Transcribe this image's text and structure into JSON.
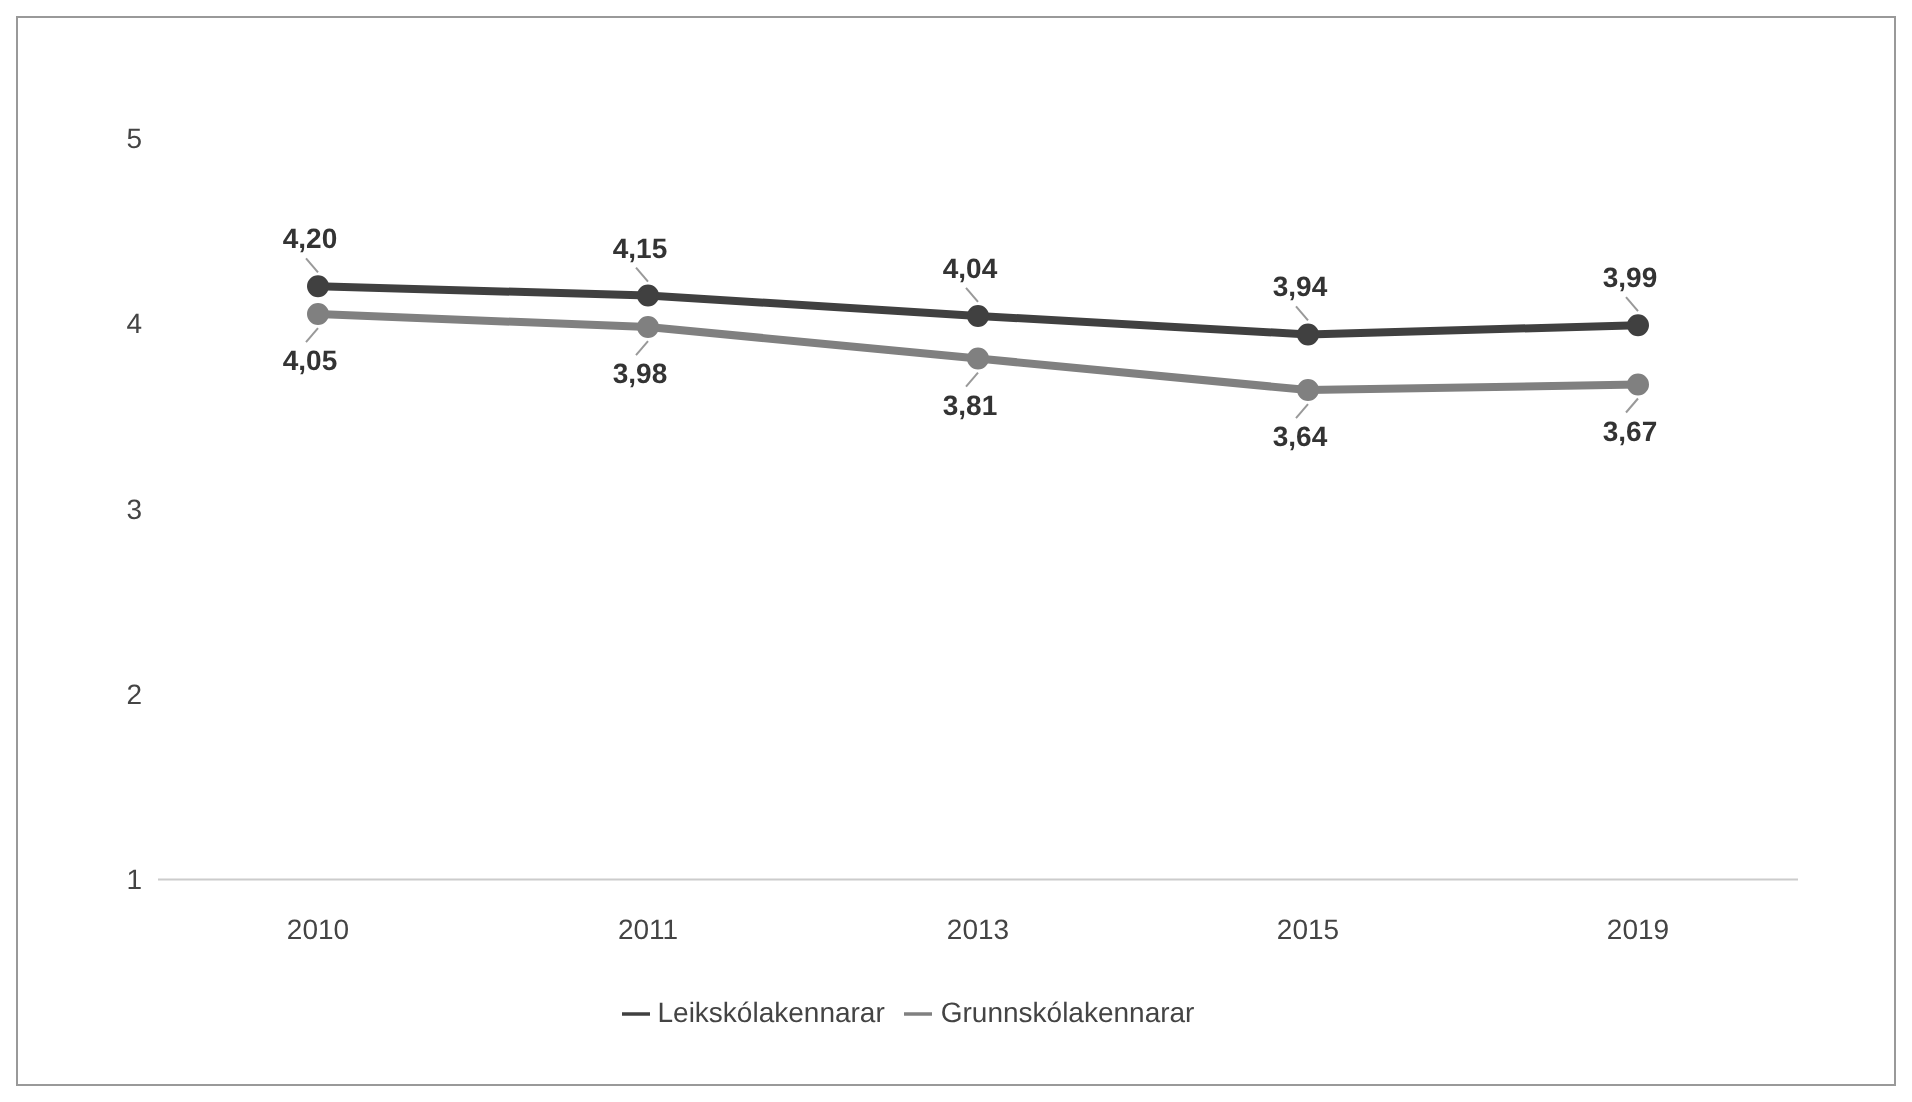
{
  "chart_data": {
    "type": "line",
    "categories": [
      "2010",
      "2011",
      "2013",
      "2015",
      "2019"
    ],
    "series": [
      {
        "name": "Leikskólakennarar",
        "color": "#404040",
        "values": [
          4.2,
          4.15,
          4.04,
          3.94,
          3.99
        ],
        "value_labels": [
          "4,20",
          "4,15",
          "4,04",
          "3,94",
          "3,99"
        ]
      },
      {
        "name": "Grunnskólakennarar",
        "color": "#808080",
        "values": [
          4.05,
          3.98,
          3.81,
          3.64,
          3.67
        ],
        "value_labels": [
          "4,05",
          "3,98",
          "3,81",
          "3,64",
          "3,67"
        ]
      }
    ],
    "ylim": [
      1,
      5
    ],
    "yticks": [
      1,
      2,
      3,
      4,
      5
    ],
    "grid": false,
    "legend": "bottom",
    "marker": "circle",
    "line_style": "solid"
  }
}
